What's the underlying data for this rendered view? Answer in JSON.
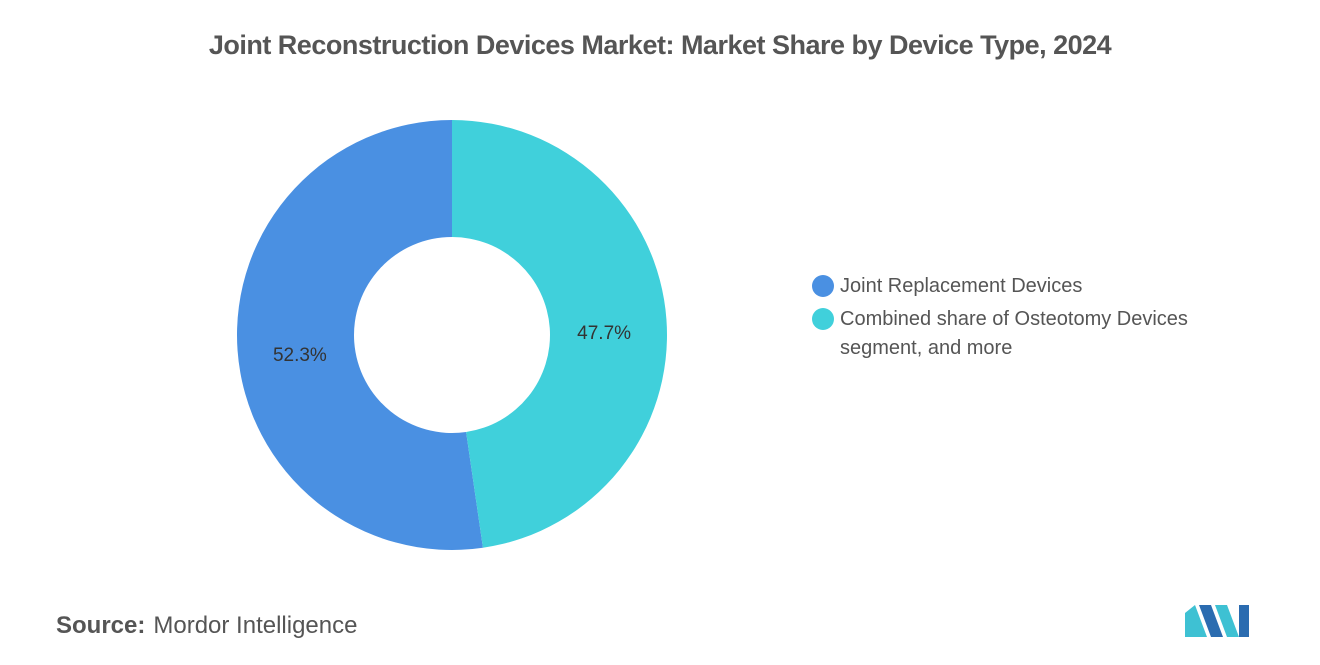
{
  "chart_data": {
    "type": "donut",
    "title": "Joint Reconstruction Devices Market: Market Share by Device Type, 2024",
    "categories": [
      "Joint Replacement Devices",
      "Combined share of Osteotomy Devices segment, and more"
    ],
    "values": [
      52.3,
      47.7
    ],
    "value_labels": [
      "52.3%",
      "47.7%"
    ],
    "colors": [
      "#4a90e2",
      "#40d0db"
    ],
    "legend": "right"
  },
  "source": {
    "label": "Source:",
    "text": "Mordor Intelligence"
  }
}
